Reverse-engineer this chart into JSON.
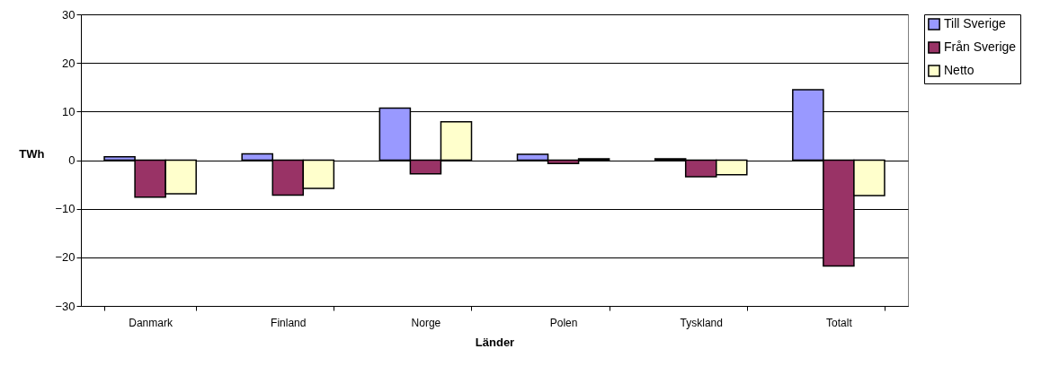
{
  "chart_data": {
    "type": "bar",
    "xlabel": "Länder",
    "ylabel": "TWh",
    "categories": [
      "Danmark",
      "Finland",
      "Norge",
      "Polen",
      "Tyskland",
      "Totalt"
    ],
    "series": [
      {
        "name": "Till Sverige",
        "color": "#9999ff",
        "values": [
          0.7,
          1.3,
          10.7,
          1.2,
          0.3,
          14.5
        ]
      },
      {
        "name": "Från Sverige",
        "color": "#993366",
        "values": [
          -7.6,
          -7.2,
          -2.8,
          -0.7,
          -3.4,
          -21.8
        ]
      },
      {
        "name": "Netto",
        "color": "#ffffcc",
        "values": [
          -6.9,
          -5.8,
          7.9,
          0.3,
          -3.0,
          -7.3
        ]
      }
    ],
    "ylim": [
      -30,
      30
    ],
    "yticks": [
      -30,
      -20,
      -10,
      0,
      10,
      20,
      30
    ],
    "grid": "y",
    "legend": "right"
  }
}
